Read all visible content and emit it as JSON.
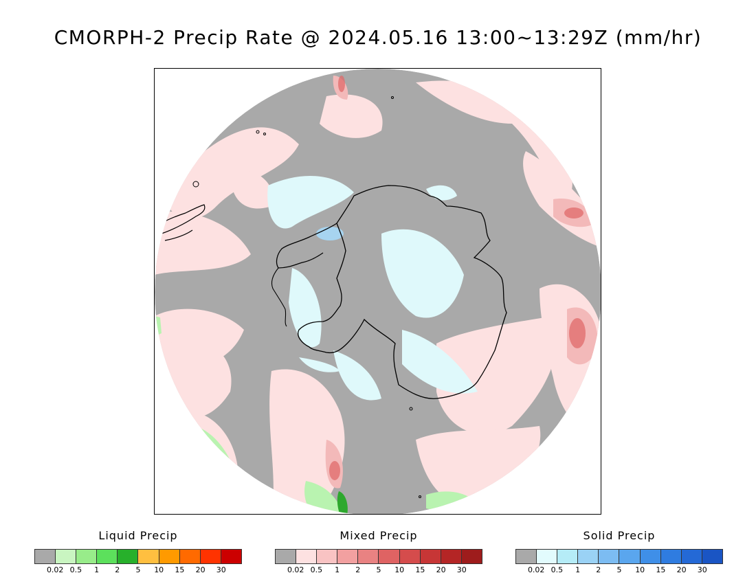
{
  "title": "CMORPH-2 Precip Rate @ 2024.05.16 13:00~13:29Z (mm/hr)",
  "map": {
    "projection": "south-polar-stereographic",
    "colors": {
      "no_precip": "#a9a9a9",
      "ocean_light_mixed": "#fde1e1",
      "mixed_medium": "#f3b9b9",
      "mixed_strong": "#e06b6b",
      "solid_light": "#dff9fb",
      "solid_medium": "#a7d4f0",
      "liquid_light": "#b9f3b0",
      "liquid_strong": "#2ea82e",
      "coastline": "#000000"
    }
  },
  "legends": [
    {
      "title": "Liquid Precip",
      "colors": [
        "#a9a9a9",
        "#c9f5c1",
        "#98ec8a",
        "#5ce05c",
        "#27b02b",
        "#ffbf40",
        "#ff9a00",
        "#ff6a00",
        "#ff3300",
        "#cc0000"
      ],
      "ticks": [
        "0.02",
        "0.5",
        "1",
        "2",
        "5",
        "10",
        "15",
        "20",
        "30"
      ]
    },
    {
      "title": "Mixed Precip",
      "colors": [
        "#a9a9a9",
        "#fde1e1",
        "#f9c3c3",
        "#f2a0a0",
        "#e98282",
        "#df6363",
        "#d54c4c",
        "#c73636",
        "#b42525",
        "#9e1c1c"
      ],
      "ticks": [
        "0.02",
        "0.5",
        "1",
        "2",
        "5",
        "10",
        "15",
        "20",
        "30"
      ]
    },
    {
      "title": "Solid Precip",
      "colors": [
        "#a9a9a9",
        "#e2fbfd",
        "#b5ecf7",
        "#9ad2f5",
        "#7cbcf2",
        "#5aa6ee",
        "#3f8fe8",
        "#2f7ce0",
        "#2469d6",
        "#1a55c4"
      ],
      "ticks": [
        "0.02",
        "0.5",
        "1",
        "2",
        "5",
        "10",
        "15",
        "20",
        "30"
      ]
    }
  ]
}
